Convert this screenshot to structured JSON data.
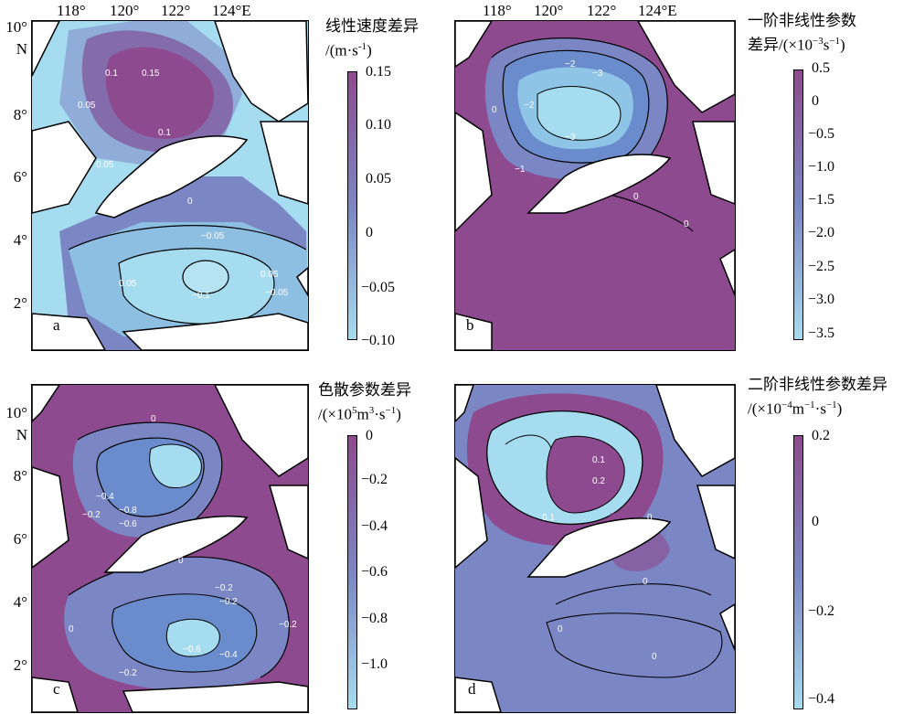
{
  "longitude_labels": [
    "118°",
    "120°",
    "122°",
    "124°E"
  ],
  "latitude_labels": [
    "10°",
    "N",
    "8°",
    "6°",
    "4°",
    "2°"
  ],
  "panels": [
    {
      "letter": "a",
      "title_line1": "线性速度差异",
      "title_line2": "/(m·s",
      "title_line2_sup": "-1",
      "title_line2_end": ")",
      "colorbar_ticks": [
        "0.15",
        "0.10",
        "0.05",
        "0",
        "−0.05",
        "−0.10"
      ],
      "contour_labels": [
        "0.1",
        "0.15",
        "0.05",
        "0.1",
        "0.05",
        "0",
        "−0.05",
        "0.05",
        "0.05",
        "−0.1",
        "−0.05"
      ]
    },
    {
      "letter": "b",
      "title_line1": "一阶非线性参数",
      "title_line2": "差异/(×10",
      "title_line2_sup": "−3",
      "title_line2_end": "s",
      "title_line2_sup2": "−1",
      "title_line2_end2": ")",
      "colorbar_ticks": [
        "0.5",
        "0",
        "−0.5",
        "−1.0",
        "−1.5",
        "−2.0",
        "−2.5",
        "−3.0",
        "−3.5"
      ],
      "contour_labels": [
        "−2",
        "−3",
        "−2",
        "−3",
        "0",
        "−1",
        "0",
        "0"
      ]
    },
    {
      "letter": "c",
      "title_line1": "色散参数差异",
      "title_line2": "/(×10",
      "title_line2_sup": "5",
      "title_line2_end": "m",
      "title_line2_sup2": "3",
      "title_line2_end2": "·s",
      "title_line2_sup3": "−1",
      "title_line2_end3": ")",
      "colorbar_ticks": [
        "0",
        "−0.2",
        "−0.4",
        "−0.6",
        "−0.8",
        "−1.0"
      ],
      "contour_labels": [
        "0",
        "−0.4",
        "−0.8",
        "−0.6",
        "−0.2",
        "0",
        "−0.2",
        "−0.2",
        "0",
        "−0.2",
        "−0.6",
        "−0.4",
        "−0.2",
        "−0.2"
      ]
    },
    {
      "letter": "d",
      "title_line1": "二阶非线性参数差异",
      "title_line2": "/(×10",
      "title_line2_sup": "−4",
      "title_line2_end": "m",
      "title_line2_sup2": "−1",
      "title_line2_end2": "·s",
      "title_line2_sup3": "−1",
      "title_line2_end3": ")",
      "colorbar_ticks": [
        "0.2",
        "0",
        "−0.2",
        "−0.4"
      ],
      "contour_labels": [
        "0.1",
        "0.2",
        "0.1",
        "0",
        "0",
        "0",
        "0"
      ]
    }
  ],
  "colors": {
    "low": "#a6dcef",
    "mid": "#7b86c4",
    "high": "#8e4a8f",
    "land": "#ffffff"
  }
}
